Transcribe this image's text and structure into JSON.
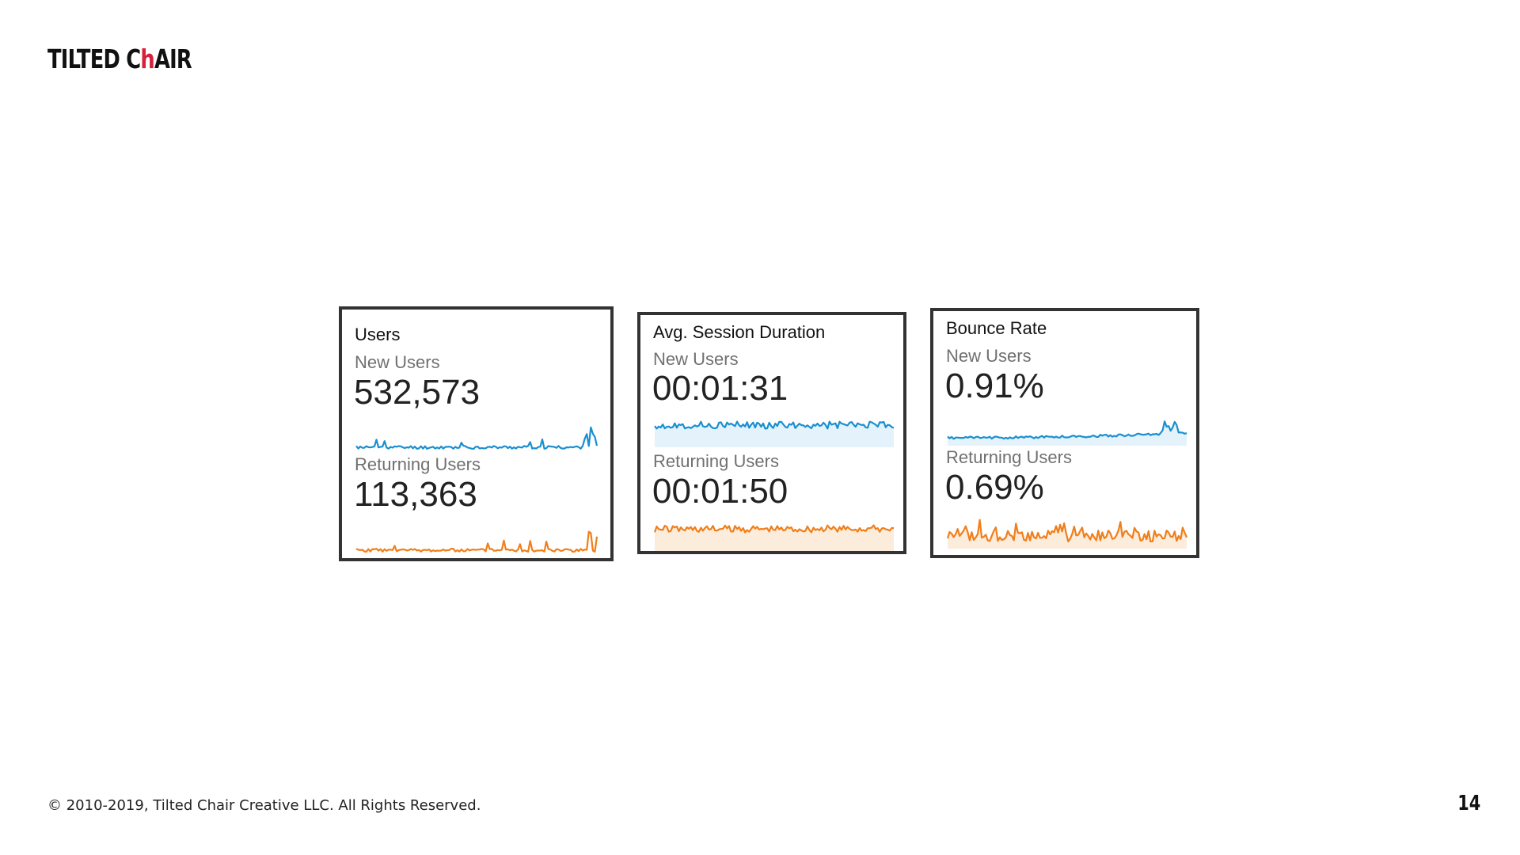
{
  "header": {
    "logo_prefix": "TILTED C",
    "logo_accent": "h",
    "logo_suffix": "AIR",
    "accent_color": "#d6203a"
  },
  "colors": {
    "new_users_line": "#1a8fd0",
    "new_users_fill": "#e3f2fb",
    "returning_users_line": "#f07e1a",
    "returning_users_fill": "#fcecdc",
    "card_border": "#333333"
  },
  "cards": [
    {
      "title": "Users",
      "metrics": [
        {
          "label": "New Users",
          "value": "532,573",
          "sparkline_seed": 11,
          "fill": false
        },
        {
          "label": "Returning Users",
          "value": "113,363",
          "sparkline_seed": 23,
          "fill": false
        }
      ]
    },
    {
      "title": "Avg. Session Duration",
      "metrics": [
        {
          "label": "New Users",
          "value": "00:01:31",
          "sparkline_seed": 37,
          "fill": true
        },
        {
          "label": "Returning Users",
          "value": "00:01:50",
          "sparkline_seed": 41,
          "fill": true
        }
      ]
    },
    {
      "title": "Bounce Rate",
      "metrics": [
        {
          "label": "New Users",
          "value": "0.91%",
          "sparkline_seed": 53,
          "fill": true
        },
        {
          "label": "Returning Users",
          "value": "0.69%",
          "sparkline_seed": 67,
          "fill": true
        }
      ]
    }
  ],
  "footer": {
    "copyright": "© 2010-2019, Tilted Chair Creative LLC. All Rights Reserved.",
    "page_number": "14"
  }
}
